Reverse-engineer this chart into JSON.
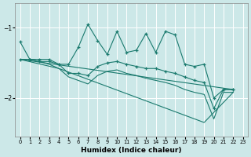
{
  "xlabel": "Humidex (Indice chaleur)",
  "ylabel": "",
  "bg_color": "#cce8e8",
  "grid_color": "#ffffff",
  "line_color": "#1a7a6e",
  "xlim": [
    -0.5,
    23.5
  ],
  "ylim": [
    -2.55,
    -0.65
  ],
  "yticks": [
    -2,
    -1
  ],
  "xticks": [
    0,
    1,
    2,
    3,
    4,
    5,
    6,
    7,
    8,
    9,
    10,
    11,
    12,
    13,
    14,
    15,
    16,
    17,
    18,
    19,
    20,
    21,
    22,
    23
  ],
  "series1_x": [
    0,
    1,
    2,
    3,
    4,
    5,
    6,
    7,
    8,
    9,
    10,
    11,
    12,
    13,
    14,
    15,
    16,
    17,
    18,
    19,
    20,
    21,
    22
  ],
  "series1_y": [
    -1.2,
    -1.45,
    -1.45,
    -1.45,
    -1.52,
    -1.52,
    -1.28,
    -0.95,
    -1.18,
    -1.38,
    -1.05,
    -1.35,
    -1.32,
    -1.08,
    -1.35,
    -1.05,
    -1.1,
    -1.52,
    -1.55,
    -1.52,
    -2.0,
    -1.88,
    -1.88
  ],
  "series2_x": [
    0,
    1,
    2,
    3,
    4,
    5,
    6,
    7,
    8,
    9,
    10,
    11,
    12,
    13,
    14,
    15,
    16,
    17,
    18,
    19,
    20,
    21,
    22
  ],
  "series2_y": [
    -1.45,
    -1.45,
    -1.48,
    -1.48,
    -1.52,
    -1.65,
    -1.65,
    -1.68,
    -1.55,
    -1.5,
    -1.48,
    -1.52,
    -1.55,
    -1.58,
    -1.58,
    -1.62,
    -1.65,
    -1.7,
    -1.75,
    -1.78,
    -2.15,
    -1.88,
    -1.88
  ],
  "series3_x": [
    0,
    1,
    2,
    3,
    4,
    5,
    6,
    7,
    8,
    9,
    10,
    11,
    12,
    13,
    14,
    15,
    16,
    17,
    18,
    19,
    20,
    21,
    22
  ],
  "series3_y": [
    -1.45,
    -1.45,
    -1.48,
    -1.52,
    -1.58,
    -1.7,
    -1.75,
    -1.8,
    -1.68,
    -1.62,
    -1.6,
    -1.65,
    -1.68,
    -1.72,
    -1.75,
    -1.78,
    -1.82,
    -1.88,
    -1.92,
    -1.95,
    -2.3,
    -1.92,
    -1.92
  ],
  "series4_x": [
    0,
    22
  ],
  "series4_y": [
    -1.45,
    -1.88
  ],
  "series5_x": [
    0,
    4,
    19,
    22
  ],
  "series5_y": [
    -1.45,
    -1.58,
    -2.35,
    -1.92
  ]
}
